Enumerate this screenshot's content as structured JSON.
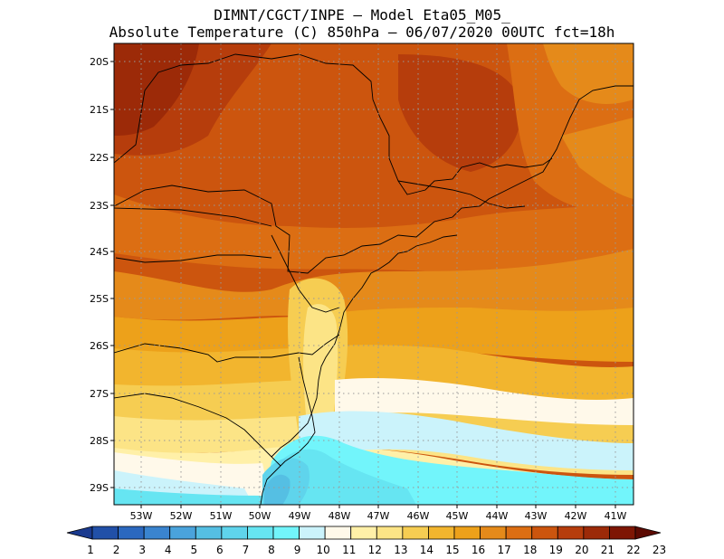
{
  "header": {
    "line1": "DIMNT/CGCT/INPE –  Model Eta05_M05_",
    "line2": "Absolute Temperature (C) 850hPa –  06/07/2020 00UTC fct=18h"
  },
  "map": {
    "lat_labels": [
      "20S",
      "21S",
      "22S",
      "23S",
      "24S",
      "25S",
      "26S",
      "27S",
      "28S",
      "29S"
    ],
    "lon_labels": [
      "53W",
      "52W",
      "51W",
      "50W",
      "49W",
      "48W",
      "47W",
      "46W",
      "45W",
      "44W",
      "43W",
      "42W",
      "41W"
    ],
    "grid": "dotted"
  },
  "colorbar": {
    "labels": [
      "1",
      "2",
      "3",
      "4",
      "5",
      "6",
      "7",
      "8",
      "9",
      "10",
      "11",
      "12",
      "13",
      "14",
      "15",
      "16",
      "17",
      "18",
      "19",
      "20",
      "21",
      "22",
      "23"
    ],
    "colors": [
      "#1a3a8f",
      "#2150a8",
      "#2b68bf",
      "#3a84cf",
      "#4aa3dc",
      "#55bfe3",
      "#5fd4ec",
      "#66e5f2",
      "#72f5fb",
      "#cbf3fb",
      "#fff9ea",
      "#fff0a8",
      "#fce486",
      "#f6cd52",
      "#f2b52e",
      "#eda11a",
      "#e58a1a",
      "#dc6e13",
      "#cc550e",
      "#b63d0c",
      "#9c2a08",
      "#7e1604",
      "#5c0a02"
    ]
  }
}
